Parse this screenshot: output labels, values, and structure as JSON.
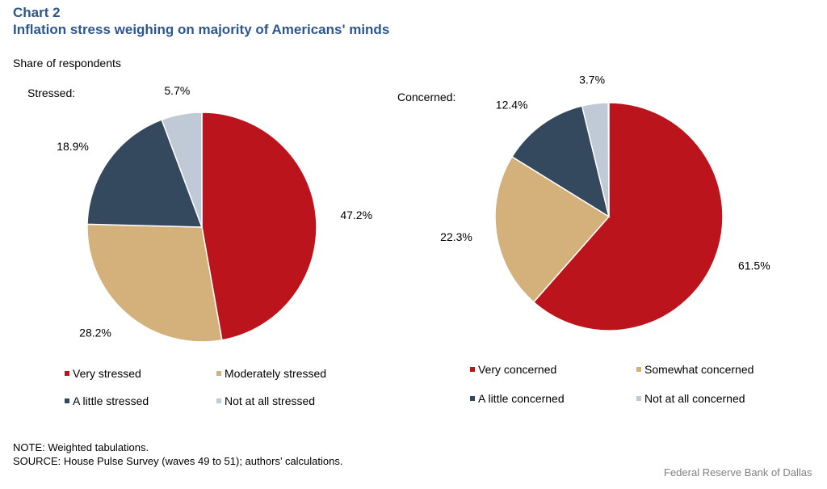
{
  "header": {
    "chart_number": "Chart 2",
    "title": "Inflation stress weighing on majority of Americans' minds",
    "subtitle": "Share of respondents"
  },
  "footer": {
    "note": "NOTE: Weighted tabulations.",
    "source": "SOURCE: House Pulse Survey (waves 49 to 51); authors’ calculations.",
    "credit": "Federal Reserve Bank of Dallas"
  },
  "colors": [
    "#BC141C",
    "#D4B07A",
    "#34495E",
    "#BFCAD6"
  ],
  "chart_data": [
    {
      "type": "pie",
      "label": "Stressed:",
      "categories": [
        "Very stressed",
        "Moderately stressed",
        "A little stressed",
        "Not at all stressed"
      ],
      "values": [
        47.2,
        28.2,
        18.9,
        5.7
      ],
      "data_labels": [
        "47.2%",
        "28.2%",
        "18.9%",
        "5.7%"
      ],
      "start": "12 o'clock",
      "direction": "clockwise",
      "legend_placement": "bottom"
    },
    {
      "type": "pie",
      "label": "Concerned:",
      "categories": [
        "Very concerned",
        "Somewhat concerned",
        "A little concerned",
        "Not at all concerned"
      ],
      "values": [
        61.5,
        22.3,
        12.4,
        3.7
      ],
      "data_labels": [
        "61.5%",
        "22.3%",
        "12.4%",
        "3.7%"
      ],
      "start": "12 o'clock",
      "direction": "clockwise",
      "legend_placement": "bottom"
    }
  ]
}
